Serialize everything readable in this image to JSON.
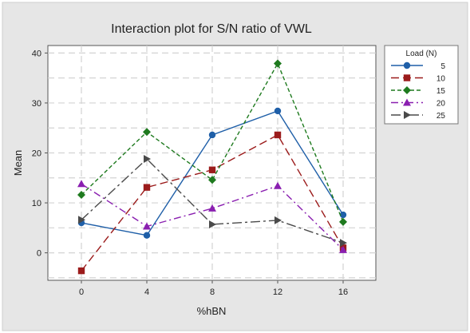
{
  "chart_data": {
    "type": "line",
    "title": "Interaction plot for S/N ratio of VWL",
    "xlabel": "%hBN",
    "ylabel": "Mean",
    "categories": [
      "0",
      "4",
      "8",
      "12",
      "16"
    ],
    "yticks": [
      "0",
      "10",
      "20",
      "30",
      "40"
    ],
    "ylim": [
      -5.5,
      41.5
    ],
    "grid": true,
    "legend": {
      "title": "Load (N)",
      "placement": "right"
    },
    "series": [
      {
        "name": "5",
        "values": [
          6.0,
          3.5,
          23.6,
          28.4,
          7.6
        ],
        "color": "#1f5fa8",
        "marker": "circle",
        "dash": "solid"
      },
      {
        "name": "10",
        "values": [
          -3.6,
          13.1,
          16.6,
          23.6,
          1.0
        ],
        "color": "#9b1b1b",
        "marker": "square",
        "dash": "longdash"
      },
      {
        "name": "15",
        "values": [
          11.6,
          24.2,
          14.6,
          37.9,
          6.2
        ],
        "color": "#1e7a1e",
        "marker": "diamond",
        "dash": "shortdash"
      },
      {
        "name": "20",
        "values": [
          13.8,
          5.3,
          8.9,
          13.4,
          0.6
        ],
        "color": "#8a1fb0",
        "marker": "triangle",
        "dash": "dashdot"
      },
      {
        "name": "25",
        "values": [
          6.6,
          18.8,
          5.7,
          6.5,
          2.0
        ],
        "color": "#4a4a4a",
        "marker": "arrow",
        "dash": "dashdotlong"
      }
    ]
  }
}
